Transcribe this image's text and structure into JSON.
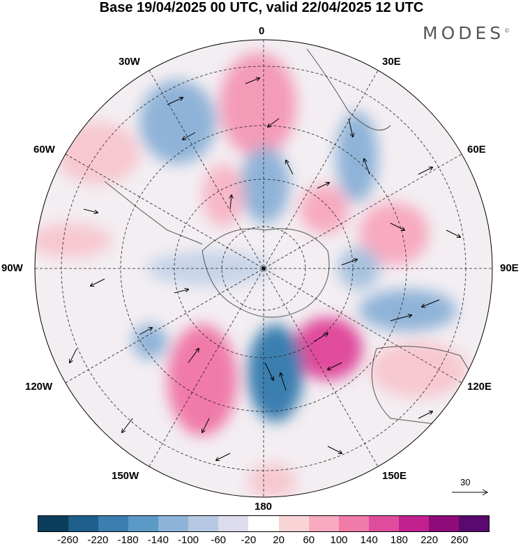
{
  "header": {
    "title": "Base 19/04/2025 00 UTC, valid 22/04/2025 12 UTC",
    "brand": "MODES",
    "brand_mark": "©"
  },
  "map": {
    "projection": "south-polar-stereographic",
    "longitude_labels": [
      "0",
      "30E",
      "60E",
      "90E",
      "120E",
      "150E",
      "180",
      "150W",
      "120W",
      "90W",
      "60W",
      "30W"
    ],
    "graticule": "dashed",
    "field": "anomaly with wind vectors"
  },
  "reference_vector": {
    "value": "30"
  },
  "colorbar": {
    "tick_labels": [
      "-260",
      "-220",
      "-180",
      "-140",
      "-100",
      "-60",
      "-20",
      "20",
      "60",
      "100",
      "140",
      "180",
      "220",
      "260"
    ],
    "colors": [
      "#0b3d5c",
      "#1d5f8a",
      "#3a7fb0",
      "#5b9ac6",
      "#8db4d8",
      "#b7c9e2",
      "#dcdcee",
      "#ffffff",
      "#f9d4d6",
      "#f7aac0",
      "#f07aa8",
      "#e04c9c",
      "#c2208f",
      "#8f0b7a",
      "#5a0a6e"
    ]
  }
}
